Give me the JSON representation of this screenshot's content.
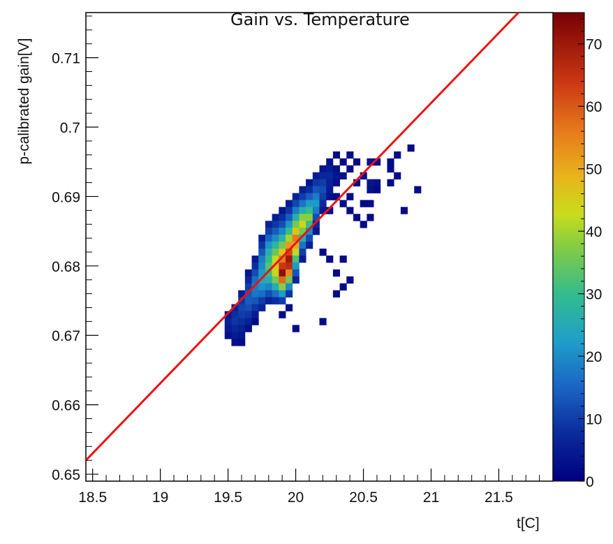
{
  "chart_data": {
    "type": "heatmap",
    "title": "Gain vs. Temperature",
    "xlabel": "t[C]",
    "ylabel": "p-calibrated gain[V]",
    "xlim": [
      18.45,
      21.9
    ],
    "ylim": [
      0.649,
      0.7165
    ],
    "x_ticks": [
      18.5,
      19,
      19.5,
      20,
      20.5,
      21,
      21.5
    ],
    "y_ticks": [
      0.65,
      0.66,
      0.67,
      0.68,
      0.69,
      0.7,
      0.71
    ],
    "y_tick_labels": [
      "0.65",
      "0.66",
      "0.67",
      "0.68",
      "0.69",
      "0.7",
      "0.71"
    ],
    "colorbar": {
      "range": [
        0,
        75
      ],
      "ticks": [
        0,
        10,
        20,
        30,
        40,
        50,
        60,
        70
      ]
    },
    "fit_line": {
      "color": "#ee1111",
      "points": [
        [
          18.45,
          0.652
        ],
        [
          21.68,
          0.7172
        ]
      ]
    },
    "cells_description_bin_size": [
      0.05,
      0.001
    ],
    "cells": [
      [
        19.5,
        0.673,
        4
      ],
      [
        19.5,
        0.672,
        6
      ],
      [
        19.5,
        0.671,
        5
      ],
      [
        19.5,
        0.67,
        3
      ],
      [
        19.55,
        0.674,
        6
      ],
      [
        19.55,
        0.673,
        8
      ],
      [
        19.55,
        0.672,
        9
      ],
      [
        19.55,
        0.671,
        7
      ],
      [
        19.55,
        0.67,
        5
      ],
      [
        19.55,
        0.669,
        3
      ],
      [
        19.6,
        0.676,
        5
      ],
      [
        19.6,
        0.675,
        9
      ],
      [
        19.6,
        0.674,
        11
      ],
      [
        19.6,
        0.673,
        10
      ],
      [
        19.6,
        0.672,
        8
      ],
      [
        19.6,
        0.671,
        6
      ],
      [
        19.6,
        0.67,
        4
      ],
      [
        19.6,
        0.669,
        2
      ],
      [
        19.65,
        0.679,
        4
      ],
      [
        19.65,
        0.678,
        7
      ],
      [
        19.65,
        0.677,
        10
      ],
      [
        19.65,
        0.676,
        13
      ],
      [
        19.65,
        0.675,
        14
      ],
      [
        19.65,
        0.674,
        12
      ],
      [
        19.65,
        0.673,
        9
      ],
      [
        19.65,
        0.672,
        6
      ],
      [
        19.65,
        0.671,
        3
      ],
      [
        19.7,
        0.681,
        5
      ],
      [
        19.7,
        0.68,
        8
      ],
      [
        19.7,
        0.679,
        12
      ],
      [
        19.7,
        0.678,
        16
      ],
      [
        19.7,
        0.677,
        18
      ],
      [
        19.7,
        0.676,
        17
      ],
      [
        19.7,
        0.675,
        13
      ],
      [
        19.7,
        0.674,
        9
      ],
      [
        19.7,
        0.673,
        5
      ],
      [
        19.7,
        0.672,
        2
      ],
      [
        19.75,
        0.684,
        5
      ],
      [
        19.75,
        0.683,
        9
      ],
      [
        19.75,
        0.682,
        13
      ],
      [
        19.75,
        0.681,
        18
      ],
      [
        19.75,
        0.68,
        20
      ],
      [
        19.75,
        0.679,
        22
      ],
      [
        19.75,
        0.678,
        24
      ],
      [
        19.75,
        0.677,
        21
      ],
      [
        19.75,
        0.676,
        16
      ],
      [
        19.75,
        0.675,
        10
      ],
      [
        19.75,
        0.674,
        6
      ],
      [
        19.8,
        0.686,
        6
      ],
      [
        19.8,
        0.685,
        10
      ],
      [
        19.8,
        0.684,
        15
      ],
      [
        19.8,
        0.683,
        21
      ],
      [
        19.8,
        0.682,
        26
      ],
      [
        19.8,
        0.681,
        30
      ],
      [
        19.8,
        0.68,
        33
      ],
      [
        19.8,
        0.679,
        30
      ],
      [
        19.8,
        0.678,
        26
      ],
      [
        19.8,
        0.677,
        19
      ],
      [
        19.8,
        0.676,
        12
      ],
      [
        19.8,
        0.675,
        6
      ],
      [
        19.85,
        0.687,
        5
      ],
      [
        19.85,
        0.686,
        9
      ],
      [
        19.85,
        0.685,
        14
      ],
      [
        19.85,
        0.684,
        20
      ],
      [
        19.85,
        0.683,
        28
      ],
      [
        19.85,
        0.682,
        35
      ],
      [
        19.85,
        0.681,
        42
      ],
      [
        19.85,
        0.68,
        46
      ],
      [
        19.85,
        0.679,
        44
      ],
      [
        19.85,
        0.678,
        36
      ],
      [
        19.85,
        0.677,
        26
      ],
      [
        19.85,
        0.676,
        16
      ],
      [
        19.85,
        0.675,
        8
      ],
      [
        19.9,
        0.688,
        4
      ],
      [
        19.9,
        0.687,
        8
      ],
      [
        19.9,
        0.686,
        12
      ],
      [
        19.9,
        0.685,
        19
      ],
      [
        19.9,
        0.684,
        27
      ],
      [
        19.9,
        0.683,
        36
      ],
      [
        19.9,
        0.682,
        46
      ],
      [
        19.9,
        0.681,
        56
      ],
      [
        19.9,
        0.68,
        64
      ],
      [
        19.9,
        0.679,
        72
      ],
      [
        19.9,
        0.678,
        58
      ],
      [
        19.9,
        0.677,
        38
      ],
      [
        19.9,
        0.676,
        22
      ],
      [
        19.9,
        0.675,
        10
      ],
      [
        19.95,
        0.689,
        5
      ],
      [
        19.95,
        0.688,
        9
      ],
      [
        19.95,
        0.687,
        14
      ],
      [
        19.95,
        0.686,
        21
      ],
      [
        19.95,
        0.685,
        30
      ],
      [
        19.95,
        0.684,
        40
      ],
      [
        19.95,
        0.683,
        52
      ],
      [
        19.95,
        0.682,
        62
      ],
      [
        19.95,
        0.681,
        70
      ],
      [
        19.95,
        0.68,
        66
      ],
      [
        19.95,
        0.679,
        54
      ],
      [
        19.95,
        0.678,
        36
      ],
      [
        19.95,
        0.677,
        20
      ],
      [
        19.95,
        0.676,
        9
      ],
      [
        20.0,
        0.69,
        6
      ],
      [
        20.0,
        0.689,
        11
      ],
      [
        20.0,
        0.688,
        18
      ],
      [
        20.0,
        0.687,
        26
      ],
      [
        20.0,
        0.686,
        36
      ],
      [
        20.0,
        0.685,
        46
      ],
      [
        20.0,
        0.684,
        56
      ],
      [
        20.0,
        0.683,
        50
      ],
      [
        20.0,
        0.682,
        42
      ],
      [
        20.0,
        0.681,
        32
      ],
      [
        20.0,
        0.68,
        22
      ],
      [
        20.0,
        0.679,
        13
      ],
      [
        20.0,
        0.678,
        7
      ],
      [
        20.05,
        0.691,
        5
      ],
      [
        20.05,
        0.69,
        10
      ],
      [
        20.05,
        0.689,
        17
      ],
      [
        20.05,
        0.688,
        26
      ],
      [
        20.05,
        0.687,
        38
      ],
      [
        20.05,
        0.686,
        44
      ],
      [
        20.05,
        0.685,
        36
      ],
      [
        20.05,
        0.684,
        26
      ],
      [
        20.05,
        0.683,
        17
      ],
      [
        20.05,
        0.682,
        10
      ],
      [
        20.05,
        0.681,
        5
      ],
      [
        20.1,
        0.692,
        4
      ],
      [
        20.1,
        0.691,
        8
      ],
      [
        20.1,
        0.69,
        14
      ],
      [
        20.1,
        0.689,
        22
      ],
      [
        20.1,
        0.688,
        30
      ],
      [
        20.1,
        0.687,
        38
      ],
      [
        20.1,
        0.686,
        30
      ],
      [
        20.1,
        0.685,
        20
      ],
      [
        20.1,
        0.684,
        12
      ],
      [
        20.1,
        0.683,
        6
      ],
      [
        20.15,
        0.693,
        5
      ],
      [
        20.15,
        0.692,
        9
      ],
      [
        20.15,
        0.691,
        13
      ],
      [
        20.15,
        0.69,
        18
      ],
      [
        20.15,
        0.689,
        22
      ],
      [
        20.15,
        0.688,
        18
      ],
      [
        20.15,
        0.687,
        12
      ],
      [
        20.15,
        0.686,
        7
      ],
      [
        20.15,
        0.685,
        4
      ],
      [
        20.2,
        0.694,
        4
      ],
      [
        20.2,
        0.693,
        7
      ],
      [
        20.2,
        0.692,
        10
      ],
      [
        20.2,
        0.691,
        12
      ],
      [
        20.2,
        0.69,
        10
      ],
      [
        20.2,
        0.689,
        7
      ],
      [
        20.2,
        0.688,
        4
      ],
      [
        20.2,
        0.682,
        2
      ],
      [
        20.25,
        0.695,
        3
      ],
      [
        20.25,
        0.694,
        5
      ],
      [
        20.25,
        0.693,
        7
      ],
      [
        20.25,
        0.692,
        6
      ],
      [
        20.25,
        0.691,
        5
      ],
      [
        20.25,
        0.69,
        3
      ],
      [
        20.25,
        0.688,
        2
      ],
      [
        20.25,
        0.681,
        2
      ],
      [
        20.3,
        0.696,
        2
      ],
      [
        20.3,
        0.694,
        3
      ],
      [
        20.3,
        0.693,
        4
      ],
      [
        20.3,
        0.692,
        3
      ],
      [
        20.3,
        0.69,
        2
      ],
      [
        20.3,
        0.679,
        2
      ],
      [
        20.3,
        0.676,
        2
      ],
      [
        20.35,
        0.695,
        2
      ],
      [
        20.35,
        0.693,
        3
      ],
      [
        20.35,
        0.689,
        2
      ],
      [
        20.35,
        0.681,
        2
      ],
      [
        20.35,
        0.677,
        2
      ],
      [
        20.4,
        0.696,
        2
      ],
      [
        20.4,
        0.694,
        2
      ],
      [
        20.4,
        0.69,
        2
      ],
      [
        20.4,
        0.688,
        2
      ],
      [
        20.4,
        0.678,
        2
      ],
      [
        20.45,
        0.695,
        2
      ],
      [
        20.45,
        0.692,
        2
      ],
      [
        20.45,
        0.687,
        2
      ],
      [
        20.5,
        0.693,
        3
      ],
      [
        20.5,
        0.689,
        2
      ],
      [
        20.5,
        0.686,
        2
      ],
      [
        20.55,
        0.695,
        3
      ],
      [
        20.55,
        0.692,
        4
      ],
      [
        20.55,
        0.691,
        3
      ],
      [
        20.55,
        0.689,
        2
      ],
      [
        20.55,
        0.687,
        2
      ],
      [
        20.6,
        0.695,
        2
      ],
      [
        20.6,
        0.692,
        3
      ],
      [
        20.6,
        0.691,
        2
      ],
      [
        20.7,
        0.695,
        2
      ],
      [
        20.7,
        0.694,
        2
      ],
      [
        20.7,
        0.692,
        2
      ],
      [
        20.75,
        0.696,
        2
      ],
      [
        20.75,
        0.693,
        2
      ],
      [
        20.8,
        0.688,
        2
      ],
      [
        20.85,
        0.697,
        2
      ],
      [
        20.9,
        0.691,
        2
      ],
      [
        19.95,
        0.674,
        3
      ],
      [
        19.9,
        0.673,
        2
      ],
      [
        20.2,
        0.672,
        2
      ],
      [
        20.0,
        0.671,
        2
      ]
    ]
  }
}
